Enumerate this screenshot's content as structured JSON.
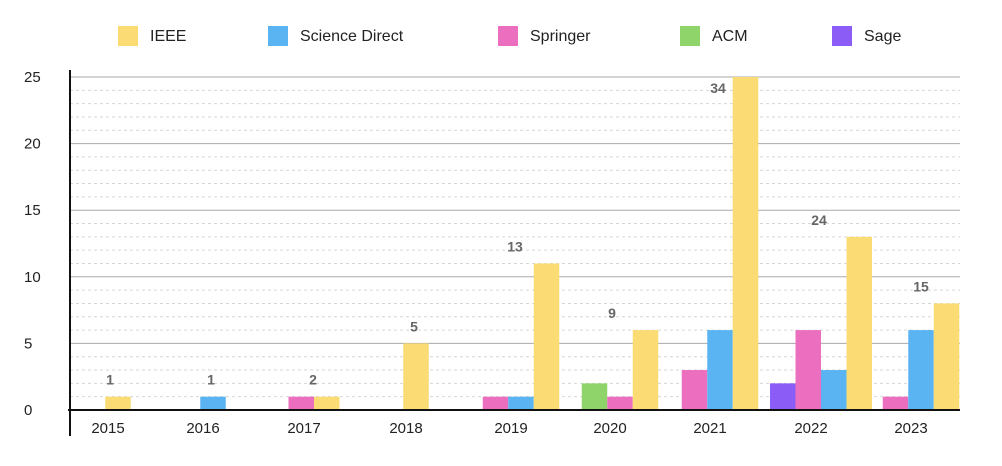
{
  "chart_data": {
    "type": "bar",
    "title": "",
    "xlabel": "",
    "ylabel": "",
    "ylim": [
      0,
      25
    ],
    "yticks": [
      0,
      5,
      10,
      15,
      20,
      25
    ],
    "grid": true,
    "legend_position": "top",
    "categories": [
      "2015",
      "2016",
      "2017",
      "2018",
      "2019",
      "2020",
      "2021",
      "2022",
      "2023"
    ],
    "series": [
      {
        "name": "Sage",
        "color": "#8b5cf6",
        "values": [
          0,
          0,
          0,
          0,
          0,
          0,
          0,
          2,
          0
        ]
      },
      {
        "name": "ACM",
        "color": "#8fd46b",
        "values": [
          0,
          0,
          0,
          0,
          0,
          2,
          0,
          0,
          0
        ]
      },
      {
        "name": "Springer",
        "color": "#ec6fbf",
        "values": [
          0,
          0,
          1,
          0,
          1,
          1,
          3,
          6,
          1
        ]
      },
      {
        "name": "Science Direct",
        "color": "#5bb4f2",
        "values": [
          0,
          1,
          0,
          0,
          1,
          0,
          6,
          3,
          6
        ]
      },
      {
        "name": "IEEE",
        "color": "#fbdc74",
        "values": [
          1,
          0,
          1,
          5,
          11,
          6,
          25,
          13,
          8
        ]
      }
    ],
    "legend_order": [
      "IEEE",
      "Science Direct",
      "Springer",
      "ACM",
      "Sage"
    ],
    "totals": [
      "1",
      "1",
      "2",
      "5",
      "13",
      "9",
      "34",
      "24",
      "15"
    ]
  }
}
